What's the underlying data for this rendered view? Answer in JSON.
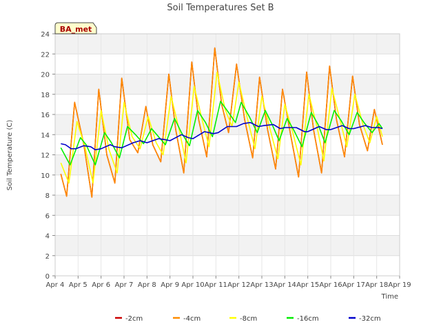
{
  "chart_data": {
    "type": "line",
    "title": "Soil Temperatures Set B",
    "xlabel": "Time",
    "ylabel": "Soil Temperature (C)",
    "xlim": [
      4,
      19
    ],
    "ylim": [
      0,
      24
    ],
    "grid": true,
    "legend_position": "bottom",
    "x_unit": "day of April",
    "xticks": [
      {
        "value": 4,
        "label": "Apr 4"
      },
      {
        "value": 5,
        "label": "Apr 5"
      },
      {
        "value": 6,
        "label": "Apr 6"
      },
      {
        "value": 7,
        "label": "Apr 7"
      },
      {
        "value": 8,
        "label": "Apr 8"
      },
      {
        "value": 9,
        "label": "Apr 9"
      },
      {
        "value": 10,
        "label": "Apr 10"
      },
      {
        "value": 11,
        "label": "Apr 11"
      },
      {
        "value": 12,
        "label": "Apr 12"
      },
      {
        "value": 13,
        "label": "Apr 13"
      },
      {
        "value": 14,
        "label": "Apr 14"
      },
      {
        "value": 15,
        "label": "Apr 15"
      },
      {
        "value": 16,
        "label": "Apr 16"
      },
      {
        "value": 17,
        "label": "Apr 17"
      },
      {
        "value": 18,
        "label": "Apr 18"
      },
      {
        "value": 19,
        "label": "Apr 19"
      }
    ],
    "yticks": [
      0,
      2,
      4,
      6,
      8,
      10,
      12,
      14,
      16,
      18,
      20,
      22,
      24
    ],
    "annotation": "BA_met",
    "series": [
      {
        "name": "-2cm",
        "color": "#cc0000",
        "points": [
          [
            4.25,
            10.1
          ],
          [
            4.5,
            7.9
          ],
          [
            4.85,
            17.2
          ],
          [
            5.25,
            13.0
          ],
          [
            5.6,
            7.8
          ],
          [
            5.9,
            18.5
          ],
          [
            6.25,
            12.0
          ],
          [
            6.6,
            9.2
          ],
          [
            6.9,
            19.6
          ],
          [
            7.25,
            13.5
          ],
          [
            7.6,
            12.2
          ],
          [
            7.95,
            16.8
          ],
          [
            8.25,
            13.0
          ],
          [
            8.6,
            11.3
          ],
          [
            8.95,
            20.0
          ],
          [
            9.25,
            14.5
          ],
          [
            9.6,
            10.2
          ],
          [
            9.95,
            21.2
          ],
          [
            10.25,
            15.5
          ],
          [
            10.6,
            11.8
          ],
          [
            10.95,
            22.6
          ],
          [
            11.25,
            17.0
          ],
          [
            11.55,
            14.2
          ],
          [
            11.9,
            21.0
          ],
          [
            12.25,
            15.5
          ],
          [
            12.6,
            11.7
          ],
          [
            12.9,
            19.7
          ],
          [
            13.25,
            14.5
          ],
          [
            13.6,
            10.6
          ],
          [
            13.9,
            18.5
          ],
          [
            14.25,
            14.0
          ],
          [
            14.6,
            9.8
          ],
          [
            14.95,
            20.2
          ],
          [
            15.25,
            14.5
          ],
          [
            15.6,
            10.2
          ],
          [
            15.95,
            20.8
          ],
          [
            16.25,
            15.5
          ],
          [
            16.6,
            11.8
          ],
          [
            16.95,
            19.8
          ],
          [
            17.25,
            15.0
          ],
          [
            17.6,
            12.4
          ],
          [
            17.9,
            16.5
          ],
          [
            18.25,
            13.0
          ]
        ]
      },
      {
        "name": "-4cm",
        "color": "#ff8c00",
        "points": [
          [
            4.25,
            10.1
          ],
          [
            4.5,
            7.9
          ],
          [
            4.85,
            17.2
          ],
          [
            5.25,
            13.0
          ],
          [
            5.6,
            7.8
          ],
          [
            5.9,
            18.5
          ],
          [
            6.25,
            12.0
          ],
          [
            6.6,
            9.2
          ],
          [
            6.9,
            19.6
          ],
          [
            7.25,
            13.5
          ],
          [
            7.6,
            12.2
          ],
          [
            7.95,
            16.8
          ],
          [
            8.25,
            13.0
          ],
          [
            8.6,
            11.3
          ],
          [
            8.95,
            20.0
          ],
          [
            9.25,
            14.5
          ],
          [
            9.6,
            10.2
          ],
          [
            9.95,
            21.2
          ],
          [
            10.25,
            15.5
          ],
          [
            10.6,
            11.8
          ],
          [
            10.95,
            22.6
          ],
          [
            11.25,
            17.0
          ],
          [
            11.55,
            14.2
          ],
          [
            11.9,
            21.0
          ],
          [
            12.25,
            15.5
          ],
          [
            12.6,
            11.7
          ],
          [
            12.9,
            19.7
          ],
          [
            13.25,
            14.5
          ],
          [
            13.6,
            10.6
          ],
          [
            13.9,
            18.5
          ],
          [
            14.25,
            14.0
          ],
          [
            14.6,
            9.8
          ],
          [
            14.95,
            20.2
          ],
          [
            15.25,
            14.5
          ],
          [
            15.6,
            10.2
          ],
          [
            15.95,
            20.8
          ],
          [
            16.25,
            15.5
          ],
          [
            16.6,
            11.8
          ],
          [
            16.95,
            19.8
          ],
          [
            17.25,
            15.0
          ],
          [
            17.6,
            12.4
          ],
          [
            17.9,
            16.5
          ],
          [
            18.25,
            13.0
          ]
        ]
      },
      {
        "name": "-8cm",
        "color": "#ffff00",
        "points": [
          [
            4.25,
            11.2
          ],
          [
            4.6,
            9.2
          ],
          [
            4.95,
            15.3
          ],
          [
            5.3,
            12.8
          ],
          [
            5.65,
            9.2
          ],
          [
            6.0,
            16.4
          ],
          [
            6.35,
            12.5
          ],
          [
            6.7,
            10.2
          ],
          [
            7.0,
            17.2
          ],
          [
            7.35,
            13.8
          ],
          [
            7.7,
            12.6
          ],
          [
            8.05,
            15.8
          ],
          [
            8.4,
            13.2
          ],
          [
            8.7,
            12.0
          ],
          [
            9.05,
            17.8
          ],
          [
            9.4,
            14.5
          ],
          [
            9.7,
            11.2
          ],
          [
            10.05,
            18.8
          ],
          [
            10.4,
            15.5
          ],
          [
            10.7,
            12.8
          ],
          [
            11.05,
            20.2
          ],
          [
            11.4,
            16.5
          ],
          [
            11.7,
            14.8
          ],
          [
            12.0,
            19.2
          ],
          [
            12.35,
            15.8
          ],
          [
            12.7,
            12.6
          ],
          [
            13.0,
            17.8
          ],
          [
            13.35,
            14.6
          ],
          [
            13.7,
            11.6
          ],
          [
            14.0,
            17.0
          ],
          [
            14.35,
            14.2
          ],
          [
            14.7,
            11.0
          ],
          [
            15.05,
            18.0
          ],
          [
            15.4,
            14.8
          ],
          [
            15.7,
            11.4
          ],
          [
            16.05,
            18.6
          ],
          [
            16.4,
            15.5
          ],
          [
            16.7,
            12.8
          ],
          [
            17.05,
            18.0
          ],
          [
            17.4,
            15.0
          ],
          [
            17.7,
            13.2
          ],
          [
            18.0,
            15.8
          ],
          [
            18.25,
            13.8
          ]
        ]
      },
      {
        "name": "-16cm",
        "color": "#00ee00",
        "points": [
          [
            4.25,
            12.7
          ],
          [
            4.65,
            11.0
          ],
          [
            5.1,
            13.7
          ],
          [
            5.35,
            13.0
          ],
          [
            5.75,
            11.0
          ],
          [
            6.15,
            14.2
          ],
          [
            6.45,
            13.2
          ],
          [
            6.8,
            11.7
          ],
          [
            7.15,
            14.8
          ],
          [
            7.5,
            14.0
          ],
          [
            7.85,
            13.1
          ],
          [
            8.2,
            14.6
          ],
          [
            8.5,
            13.8
          ],
          [
            8.8,
            13.0
          ],
          [
            9.2,
            15.6
          ],
          [
            9.5,
            14.2
          ],
          [
            9.85,
            12.9
          ],
          [
            10.2,
            16.4
          ],
          [
            10.55,
            15.2
          ],
          [
            10.85,
            13.8
          ],
          [
            11.2,
            17.3
          ],
          [
            11.55,
            16.2
          ],
          [
            11.85,
            15.2
          ],
          [
            12.1,
            17.2
          ],
          [
            12.45,
            15.8
          ],
          [
            12.8,
            14.2
          ],
          [
            13.15,
            16.4
          ],
          [
            13.45,
            15.0
          ],
          [
            13.75,
            13.4
          ],
          [
            14.1,
            15.6
          ],
          [
            14.4,
            14.4
          ],
          [
            14.75,
            12.8
          ],
          [
            15.15,
            16.2
          ],
          [
            15.45,
            15.0
          ],
          [
            15.75,
            13.2
          ],
          [
            16.15,
            16.4
          ],
          [
            16.45,
            15.4
          ],
          [
            16.8,
            14.0
          ],
          [
            17.15,
            16.2
          ],
          [
            17.45,
            15.2
          ],
          [
            17.8,
            14.2
          ],
          [
            18.1,
            15.1
          ],
          [
            18.25,
            14.6
          ]
        ]
      },
      {
        "name": "-32cm",
        "color": "#0000cc",
        "points": [
          [
            4.25,
            13.1
          ],
          [
            4.45,
            13.0
          ],
          [
            4.7,
            12.6
          ],
          [
            4.9,
            12.6
          ],
          [
            5.25,
            12.9
          ],
          [
            5.55,
            12.8
          ],
          [
            5.75,
            12.5
          ],
          [
            6.0,
            12.6
          ],
          [
            6.4,
            13.0
          ],
          [
            6.6,
            12.8
          ],
          [
            6.9,
            12.7
          ],
          [
            7.4,
            13.2
          ],
          [
            7.7,
            13.4
          ],
          [
            8.0,
            13.2
          ],
          [
            8.5,
            13.6
          ],
          [
            8.8,
            13.5
          ],
          [
            9.0,
            13.4
          ],
          [
            9.5,
            14.0
          ],
          [
            9.8,
            13.7
          ],
          [
            10.0,
            13.6
          ],
          [
            10.5,
            14.3
          ],
          [
            10.9,
            14.1
          ],
          [
            11.1,
            14.2
          ],
          [
            11.5,
            14.8
          ],
          [
            11.9,
            14.8
          ],
          [
            12.2,
            15.1
          ],
          [
            12.5,
            15.2
          ],
          [
            12.85,
            14.8
          ],
          [
            13.1,
            14.9
          ],
          [
            13.5,
            15.0
          ],
          [
            13.8,
            14.6
          ],
          [
            14.0,
            14.7
          ],
          [
            14.5,
            14.7
          ],
          [
            14.85,
            14.3
          ],
          [
            15.0,
            14.3
          ],
          [
            15.5,
            14.8
          ],
          [
            15.8,
            14.5
          ],
          [
            16.0,
            14.5
          ],
          [
            16.5,
            14.9
          ],
          [
            16.8,
            14.6
          ],
          [
            17.0,
            14.6
          ],
          [
            17.5,
            14.9
          ],
          [
            17.8,
            14.7
          ],
          [
            18.1,
            14.7
          ],
          [
            18.25,
            14.6
          ]
        ]
      }
    ]
  }
}
